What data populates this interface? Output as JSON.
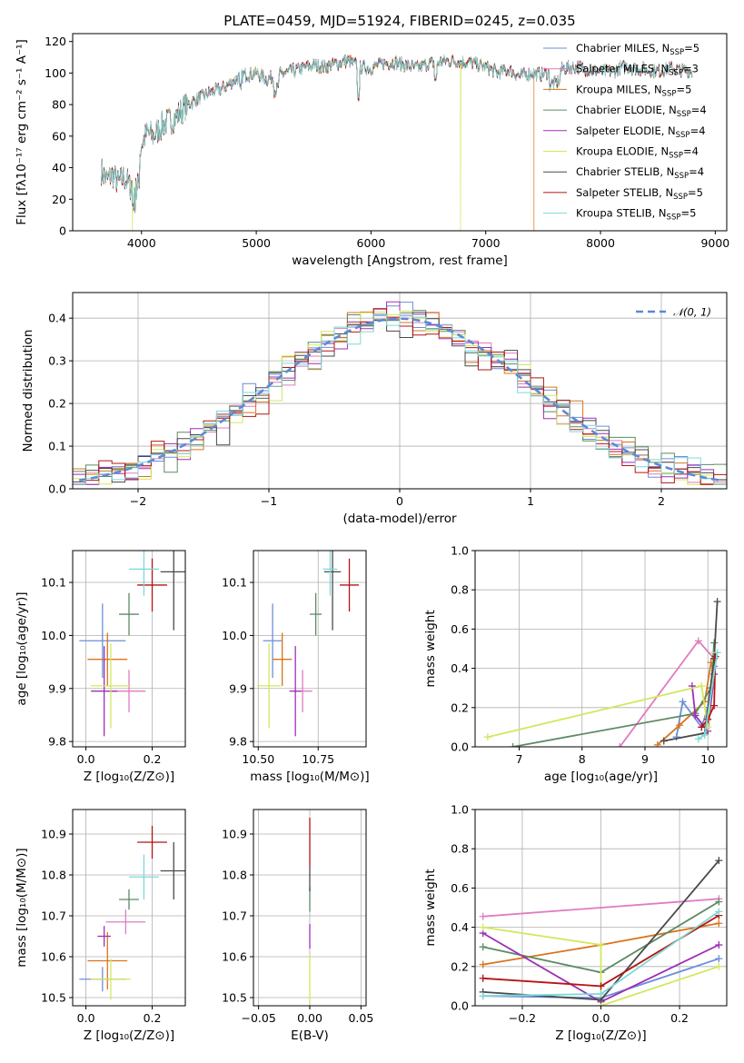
{
  "chart_data": [
    {
      "id": "spectrum",
      "type": "line",
      "title": "PLATE=0459, MJD=51924, FIBERID=0245, z=0.035",
      "xlabel": "wavelength [Angstrom, rest frame]",
      "ylabel": "Flux [fλ10⁻¹⁷ erg cm⁻² s⁻¹ A⁻¹]",
      "xlim": [
        3400,
        9100
      ],
      "ylim": [
        0,
        125
      ],
      "xticks": [
        "4000",
        "5000",
        "6000",
        "7000",
        "8000",
        "9000"
      ],
      "yticks": [
        "0",
        "20",
        "40",
        "60",
        "80",
        "100",
        "120"
      ],
      "legend_position": "top-right",
      "envelope": {
        "x": [
          3650,
          3700,
          3750,
          3800,
          3850,
          3900,
          3950,
          4000,
          4050,
          4100,
          4200,
          4300,
          4400,
          4500,
          4600,
          4700,
          4800,
          4900,
          5000,
          5100,
          5200,
          5300,
          5400,
          5500,
          5600,
          5700,
          5800,
          5900,
          6000,
          6100,
          6200,
          6300,
          6400,
          6500,
          6600,
          6700,
          6800,
          6900,
          7000,
          7100,
          7200,
          7300,
          7400,
          7500,
          7600,
          7700,
          7800,
          7900,
          8000,
          8100,
          8200,
          8300,
          8400,
          8500,
          8600,
          8700,
          8800
        ],
        "y": [
          38,
          32,
          36,
          30,
          34,
          28,
          35,
          55,
          62,
          60,
          68,
          72,
          80,
          84,
          88,
          90,
          95,
          99,
          100,
          96,
          99,
          101,
          103,
          105,
          104,
          106,
          108,
          104,
          103,
          106,
          107,
          105,
          103,
          106,
          107,
          108,
          107,
          106,
          104,
          100,
          102,
          98,
          100,
          99,
          102,
          103,
          104,
          102,
          101,
          101,
          104,
          103,
          102,
          101,
          103,
          102,
          101
        ]
      },
      "drops": [
        {
          "x": 3920,
          "series": 5
        },
        {
          "x": 6780,
          "series": 5
        },
        {
          "x": 7420,
          "series": 2
        }
      ],
      "series": [
        {
          "name": "Chabrier MILES, N",
          "sub": "SSP",
          "suffix": "=5",
          "color": "#6c8ed8"
        },
        {
          "name": "Salpeter MILES, N",
          "sub": "SSP",
          "suffix": "=3",
          "color": "#e07bc0"
        },
        {
          "name": "Kroupa MILES, N",
          "sub": "SSP",
          "suffix": "=5",
          "color": "#d9741c"
        },
        {
          "name": "Chabrier ELODIE, N",
          "sub": "SSP",
          "suffix": "=4",
          "color": "#5e8a63"
        },
        {
          "name": "Salpeter ELODIE, N",
          "sub": "SSP",
          "suffix": "=4",
          "color": "#9d2fb5"
        },
        {
          "name": "Kroupa ELODIE, N",
          "sub": "SSP",
          "suffix": "=4",
          "color": "#d2e85e"
        },
        {
          "name": "Chabrier STELIB, N",
          "sub": "SSP",
          "suffix": "=4",
          "color": "#4a4a4a"
        },
        {
          "name": "Salpeter STELIB, N",
          "sub": "SSP",
          "suffix": "=5",
          "color": "#b51414"
        },
        {
          "name": "Kroupa STELIB, N",
          "sub": "SSP",
          "suffix": "=5",
          "color": "#7fd8d8"
        }
      ]
    },
    {
      "id": "residuals",
      "type": "step",
      "xlabel": "(data-model)/error",
      "ylabel": "Normed distribution",
      "xlim": [
        -2.5,
        2.5
      ],
      "ylim": [
        0,
        0.46
      ],
      "xticks": [
        "−2",
        "−1",
        "0",
        "1",
        "2"
      ],
      "yticks": [
        "0.0",
        "0.1",
        "0.2",
        "0.3",
        "0.4"
      ],
      "legend_position": "top-right",
      "normal_label": "𝒩(0, 1)",
      "normal_color": "#5b8ad6",
      "bin_width": 0.1
    },
    {
      "id": "age-vs-Z",
      "type": "errorbar",
      "xlabel": "Z [log₁₀(Z/Z⊙)]",
      "ylabel": "age  [log₁₀(age/yr)]",
      "xlim": [
        -0.04,
        0.3
      ],
      "ylim": [
        9.79,
        10.16
      ],
      "xticks": [
        "0.0",
        "0.2"
      ],
      "yticks": [
        "9.8",
        "9.9",
        "10.0",
        "10.1"
      ],
      "points": [
        {
          "x": 0.05,
          "xerr": 0.07,
          "y": 9.99,
          "yerr": 0.07,
          "color": "#6c8ed8"
        },
        {
          "x": 0.13,
          "xerr": 0.05,
          "y": 9.895,
          "yerr": 0.04,
          "color": "#e07bc0"
        },
        {
          "x": 0.065,
          "xerr": 0.06,
          "y": 9.955,
          "yerr": 0.05,
          "color": "#d9741c"
        },
        {
          "x": 0.13,
          "xerr": 0.03,
          "y": 10.04,
          "yerr": 0.04,
          "color": "#5e8a63"
        },
        {
          "x": 0.055,
          "xerr": 0.04,
          "y": 9.895,
          "yerr": 0.085,
          "color": "#9d2fb5"
        },
        {
          "x": 0.075,
          "xerr": 0.06,
          "y": 9.905,
          "yerr": 0.08,
          "color": "#d2e85e"
        },
        {
          "x": 0.265,
          "xerr": 0.04,
          "y": 10.12,
          "yerr": 0.11,
          "color": "#4a4a4a"
        },
        {
          "x": 0.2,
          "xerr": 0.045,
          "y": 10.095,
          "yerr": 0.05,
          "color": "#b51414"
        },
        {
          "x": 0.175,
          "xerr": 0.045,
          "y": 10.125,
          "yerr": 0.05,
          "color": "#7fd8d8"
        }
      ]
    },
    {
      "id": "age-vs-mass",
      "type": "errorbar",
      "xlabel": "mass [log₁₀(M/M⊙)]",
      "xlim": [
        10.48,
        10.95
      ],
      "ylim": [
        9.79,
        10.16
      ],
      "xticks": [
        "10.50",
        "10.75"
      ],
      "yticks": [
        "9.8",
        "9.9",
        "10.0",
        "10.1"
      ],
      "points": [
        {
          "x": 10.56,
          "xerr": 0.04,
          "y": 9.99,
          "yerr": 0.07,
          "color": "#6c8ed8"
        },
        {
          "x": 10.685,
          "xerr": 0.04,
          "y": 9.895,
          "yerr": 0.04,
          "color": "#e07bc0"
        },
        {
          "x": 10.6,
          "xerr": 0.04,
          "y": 9.955,
          "yerr": 0.05,
          "color": "#d9741c"
        },
        {
          "x": 10.74,
          "xerr": 0.025,
          "y": 10.04,
          "yerr": 0.04,
          "color": "#5e8a63"
        },
        {
          "x": 10.655,
          "xerr": 0.025,
          "y": 9.895,
          "yerr": 0.085,
          "color": "#9d2fb5"
        },
        {
          "x": 10.545,
          "xerr": 0.05,
          "y": 9.905,
          "yerr": 0.08,
          "color": "#d2e85e"
        },
        {
          "x": 10.81,
          "xerr": 0.035,
          "y": 10.12,
          "yerr": 0.11,
          "color": "#4a4a4a"
        },
        {
          "x": 10.88,
          "xerr": 0.04,
          "y": 10.095,
          "yerr": 0.05,
          "color": "#b51414"
        },
        {
          "x": 10.8,
          "xerr": 0.03,
          "y": 10.125,
          "yerr": 0.05,
          "color": "#7fd8d8"
        }
      ]
    },
    {
      "id": "weight-vs-age",
      "type": "line",
      "xlabel": "age  [log₁₀(age/yr)]",
      "ylabel": "mass weight",
      "xlim": [
        6.3,
        10.3
      ],
      "ylim": [
        0,
        1
      ],
      "xticks": [
        "7",
        "8",
        "9",
        "10"
      ],
      "yticks": [
        "0.0",
        "0.2",
        "0.4",
        "0.6",
        "0.8",
        "1.0"
      ],
      "series": [
        {
          "color": "#6c8ed8",
          "x": [
            9.5,
            9.6,
            9.9,
            10.0,
            10.1
          ],
          "y": [
            0.05,
            0.23,
            0.1,
            0.2,
            0.41
          ]
        },
        {
          "color": "#e07bc0",
          "x": [
            8.6,
            9.85,
            10.1
          ],
          "y": [
            0.0,
            0.54,
            0.45
          ]
        },
        {
          "color": "#d9741c",
          "x": [
            9.2,
            9.55,
            9.95,
            10.05
          ],
          "y": [
            0.01,
            0.11,
            0.23,
            0.43
          ]
        },
        {
          "color": "#5e8a63",
          "x": [
            6.9,
            9.8,
            10.05,
            10.1
          ],
          "y": [
            0.0,
            0.17,
            0.3,
            0.53
          ]
        },
        {
          "color": "#9d2fb5",
          "x": [
            9.75,
            9.8,
            10.0,
            10.1
          ],
          "y": [
            0.31,
            0.16,
            0.08,
            0.37
          ]
        },
        {
          "color": "#d2e85e",
          "x": [
            6.5,
            9.9,
            10.0,
            10.1
          ],
          "y": [
            0.05,
            0.31,
            0.1,
            0.48
          ]
        },
        {
          "color": "#4a4a4a",
          "x": [
            9.3,
            9.95,
            10.1,
            10.15
          ],
          "y": [
            0.03,
            0.07,
            0.45,
            0.74
          ]
        },
        {
          "color": "#b51414",
          "x": [
            9.9,
            10.0,
            10.1,
            10.12
          ],
          "y": [
            0.1,
            0.14,
            0.21,
            0.46
          ]
        },
        {
          "color": "#7fd8d8",
          "x": [
            9.85,
            9.95,
            10.15
          ],
          "y": [
            0.04,
            0.06,
            0.48
          ]
        }
      ]
    },
    {
      "id": "mass-vs-Z",
      "type": "errorbar",
      "xlabel": "Z [log₁₀(Z/Z⊙)]",
      "ylabel": "mass [log₁₀(M/M⊙)]",
      "xlim": [
        -0.04,
        0.3
      ],
      "ylim": [
        10.48,
        10.96
      ],
      "xticks": [
        "0.0",
        "0.2"
      ],
      "yticks": [
        "10.5",
        "10.6",
        "10.7",
        "10.8",
        "10.9"
      ],
      "points": [
        {
          "x": 0.05,
          "xerr": 0.07,
          "y": 10.545,
          "yerr": 0.03,
          "color": "#6c8ed8"
        },
        {
          "x": 0.12,
          "xerr": 0.06,
          "y": 10.685,
          "yerr": 0.03,
          "color": "#e07bc0"
        },
        {
          "x": 0.065,
          "xerr": 0.06,
          "y": 10.59,
          "yerr": 0.07,
          "color": "#d9741c"
        },
        {
          "x": 0.13,
          "xerr": 0.03,
          "y": 10.74,
          "yerr": 0.025,
          "color": "#5e8a63"
        },
        {
          "x": 0.055,
          "xerr": 0.02,
          "y": 10.65,
          "yerr": 0.025,
          "color": "#9d2fb5"
        },
        {
          "x": 0.075,
          "xerr": 0.06,
          "y": 10.545,
          "yerr": 0.05,
          "color": "#d2e85e"
        },
        {
          "x": 0.265,
          "xerr": 0.04,
          "y": 10.81,
          "yerr": 0.07,
          "color": "#4a4a4a"
        },
        {
          "x": 0.2,
          "xerr": 0.045,
          "y": 10.88,
          "yerr": 0.04,
          "color": "#b51414"
        },
        {
          "x": 0.175,
          "xerr": 0.045,
          "y": 10.795,
          "yerr": 0.055,
          "color": "#7fd8d8"
        }
      ]
    },
    {
      "id": "mass-vs-EBV",
      "type": "errorbar",
      "xlabel": "E(B-V)",
      "xlim": [
        -0.055,
        0.055
      ],
      "ylim": [
        10.48,
        10.96
      ],
      "xticks": [
        "−0.05",
        "0.00",
        "0.05"
      ],
      "yticks": [
        "10.5",
        "10.6",
        "10.7",
        "10.8",
        "10.9"
      ],
      "points": [
        {
          "x": 0.0,
          "xerr": 0.0,
          "y": 10.545,
          "yerr": 0.06,
          "color": "#d2e85e"
        },
        {
          "x": 0.0,
          "xerr": 0.0,
          "y": 10.65,
          "yerr": 0.03,
          "color": "#9d2fb5"
        },
        {
          "x": 0.0,
          "xerr": 0.0,
          "y": 10.74,
          "yerr": 0.03,
          "color": "#5e8a63"
        },
        {
          "x": 0.0,
          "xerr": 0.0,
          "y": 10.79,
          "yerr": 0.03,
          "color": "#4a4a4a"
        },
        {
          "x": 0.0,
          "xerr": 0.0,
          "y": 10.88,
          "yerr": 0.06,
          "color": "#b51414"
        }
      ]
    },
    {
      "id": "weight-vs-Z",
      "type": "line",
      "xlabel": "Z [log₁₀(Z/Z⊙)]",
      "ylabel": "mass weight",
      "xlim": [
        -0.32,
        0.32
      ],
      "ylim": [
        0,
        1
      ],
      "xticks": [
        "−0.2",
        "0.0",
        "0.2"
      ],
      "yticks": [
        "0.0",
        "0.2",
        "0.4",
        "0.6",
        "0.8",
        "1.0"
      ],
      "series": [
        {
          "color": "#6c8ed8",
          "x": [
            -0.3,
            0.0,
            0.3
          ],
          "y": [
            0.05,
            0.04,
            0.24
          ]
        },
        {
          "color": "#e07bc0",
          "x": [
            -0.3,
            0.3
          ],
          "y": [
            0.455,
            0.545
          ]
        },
        {
          "color": "#d9741c",
          "x": [
            -0.3,
            0.0,
            0.3
          ],
          "y": [
            0.21,
            0.31,
            0.42
          ]
        },
        {
          "color": "#5e8a63",
          "x": [
            -0.3,
            0.0,
            0.3
          ],
          "y": [
            0.3,
            0.17,
            0.53
          ]
        },
        {
          "color": "#9d2fb5",
          "x": [
            -0.3,
            0.0,
            0.3
          ],
          "y": [
            0.37,
            0.02,
            0.31
          ]
        },
        {
          "color": "#d2e85e",
          "x": [
            -0.3,
            0.0,
            0.0,
            0.3
          ],
          "y": [
            0.4,
            0.31,
            0.0,
            0.2
          ]
        },
        {
          "color": "#4a4a4a",
          "x": [
            -0.3,
            0.0,
            0.3
          ],
          "y": [
            0.07,
            0.03,
            0.74
          ]
        },
        {
          "color": "#b51414",
          "x": [
            -0.3,
            0.0,
            0.3
          ],
          "y": [
            0.14,
            0.1,
            0.46
          ]
        },
        {
          "color": "#7fd8d8",
          "x": [
            -0.3,
            0.0,
            0.3
          ],
          "y": [
            0.05,
            0.06,
            0.48
          ]
        }
      ]
    }
  ]
}
